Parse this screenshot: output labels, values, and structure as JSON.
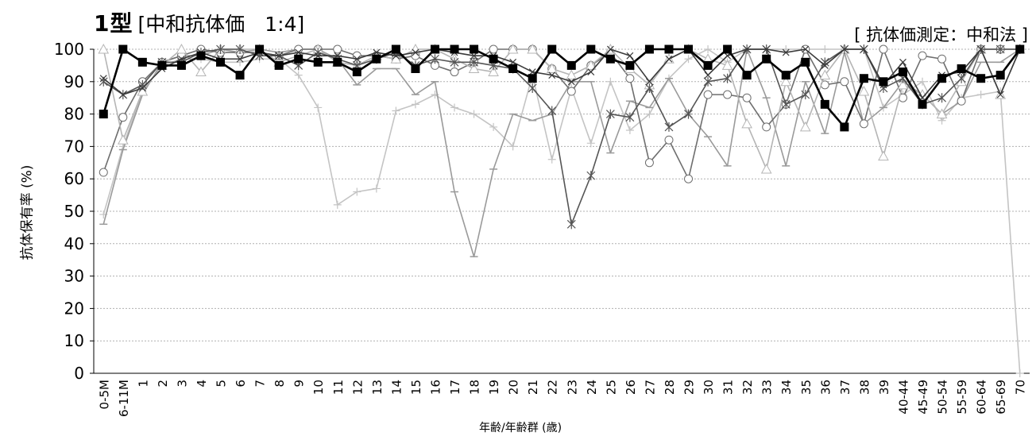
{
  "title": "1型",
  "subtitle": "[中和抗体価　1:4]",
  "note": "[ 抗体価測定：中和法 ]",
  "chart_data": {
    "type": "line",
    "ylabel": "抗体保有率 (%)",
    "xlabel": "年齢/年齢群 (歳)",
    "ylim": [
      0,
      100
    ],
    "yticks": [
      0,
      10,
      20,
      30,
      40,
      50,
      60,
      70,
      80,
      90,
      100
    ],
    "grid": true,
    "categories": [
      "0-5M",
      "6-11M",
      "1",
      "2",
      "3",
      "4",
      "5",
      "6",
      "7",
      "8",
      "9",
      "10",
      "11",
      "12",
      "13",
      "14",
      "15",
      "16",
      "17",
      "18",
      "19",
      "20",
      "21",
      "22",
      "23",
      "24",
      "25",
      "26",
      "27",
      "28",
      "29",
      "30",
      "31",
      "32",
      "33",
      "34",
      "35",
      "36",
      "37",
      "38",
      "39",
      "40-44",
      "45-49",
      "50-54",
      "55-59",
      "60-64",
      "65-69",
      "70"
    ],
    "series": [
      {
        "marker": "plus",
        "color": "#c4c4c4",
        "values": [
          49,
          70,
          87,
          95,
          97,
          97,
          96,
          96,
          97,
          97,
          92,
          82,
          52,
          56,
          57,
          81,
          83,
          86,
          82,
          80,
          76,
          70,
          92,
          66,
          88,
          71,
          90,
          75,
          80,
          91,
          97,
          100,
          96,
          100,
          100,
          100,
          100,
          100,
          100,
          100,
          82,
          86,
          90,
          78,
          85,
          86,
          87,
          0
        ]
      },
      {
        "marker": "minus",
        "color": "#9a9a9a",
        "values": [
          46,
          69,
          86,
          96,
          98,
          98,
          100,
          99,
          100,
          99,
          100,
          100,
          97,
          89,
          94,
          94,
          86,
          90,
          56,
          36,
          63,
          80,
          78,
          80,
          90,
          90,
          68,
          84,
          82,
          91,
          80,
          73,
          64,
          100,
          85,
          64,
          90,
          74,
          99,
          77,
          82,
          90,
          86,
          80,
          84,
          96,
          96,
          100
        ]
      },
      {
        "marker": "circle",
        "color": "#6e6e6e",
        "values": [
          62,
          79,
          90,
          96,
          98,
          100,
          99,
          99,
          99,
          98,
          100,
          100,
          100,
          98,
          98,
          97,
          98,
          95,
          93,
          96,
          100,
          100,
          100,
          94,
          87,
          95,
          99,
          91,
          65,
          72,
          60,
          86,
          86,
          85,
          76,
          83,
          100,
          89,
          90,
          77,
          100,
          85,
          98,
          97,
          84,
          100,
          100,
          100
        ]
      },
      {
        "marker": "triangle",
        "color": "#b5b5b5",
        "values": [
          100,
          72,
          87,
          95,
          100,
          93,
          100,
          100,
          100,
          96,
          98,
          100,
          96,
          95,
          98,
          97,
          100,
          100,
          97,
          94,
          93,
          100,
          100,
          94,
          92,
          95,
          100,
          94,
          89,
          97,
          100,
          97,
          95,
          77,
          63,
          90,
          76,
          92,
          100,
          87,
          67,
          89,
          86,
          80,
          90,
          100,
          86,
          100
        ]
      },
      {
        "marker": "asterisk",
        "color": "#555555",
        "values": [
          90,
          86,
          89,
          96,
          96,
          99,
          100,
          100,
          98,
          98,
          95,
          99,
          97,
          95,
          97,
          99,
          95,
          97,
          96,
          96,
          95,
          94,
          88,
          81,
          46,
          61,
          80,
          79,
          88,
          76,
          80,
          90,
          91,
          100,
          100,
          83,
          86,
          96,
          100,
          100,
          88,
          91,
          83,
          85,
          91,
          100,
          100,
          100
        ]
      },
      {
        "marker": "cross",
        "color": "#3a3a3a",
        "values": [
          91,
          86,
          88,
          94,
          97,
          99,
          97,
          97,
          99,
          98,
          99,
          98,
          98,
          97,
          99,
          98,
          99,
          100,
          99,
          98,
          98,
          96,
          93,
          92,
          90,
          93,
          100,
          98,
          90,
          97,
          100,
          92,
          98,
          100,
          100,
          99,
          100,
          95,
          100,
          100,
          89,
          96,
          85,
          92,
          93,
          100,
          86,
          100
        ]
      },
      {
        "marker": "square",
        "color": "#000000",
        "values": [
          80,
          100,
          96,
          95,
          95,
          98,
          96,
          92,
          100,
          95,
          97,
          96,
          96,
          93,
          97,
          100,
          94,
          100,
          100,
          100,
          97,
          94,
          91,
          100,
          95,
          100,
          97,
          95,
          100,
          100,
          100,
          95,
          100,
          92,
          97,
          92,
          96,
          83,
          76,
          91,
          90,
          93,
          83,
          91,
          94,
          91,
          92,
          100
        ]
      }
    ]
  }
}
